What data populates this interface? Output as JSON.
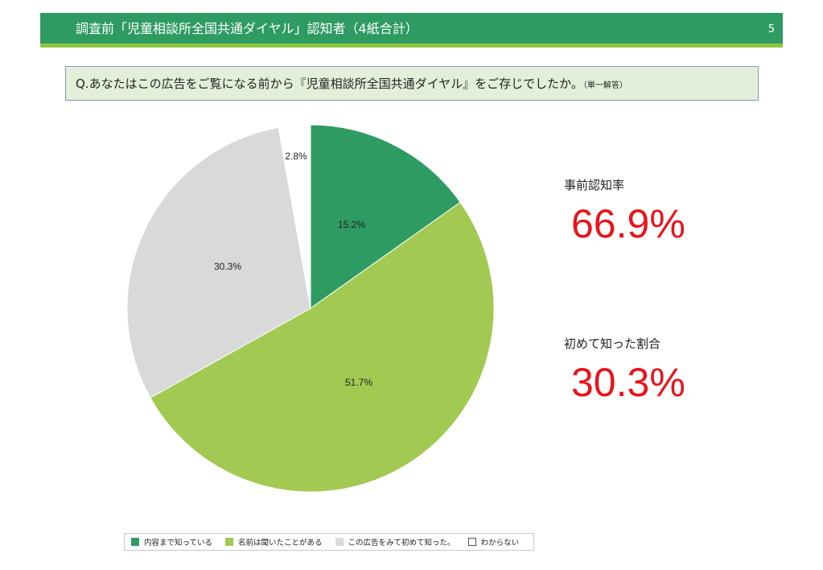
{
  "header": {
    "title": "調査前「児童相談所全国共通ダイヤル」認知者（4紙合計）",
    "page_number": "5"
  },
  "question": {
    "text": "Q.あなたはこの広告をご覧になる前から『児童相談所全国共通ダイヤル』をご存じでしたか。",
    "note": "（単一解答）"
  },
  "kpis": [
    {
      "label": "事前認知率",
      "value": "66.9%"
    },
    {
      "label": "初めて知った割合",
      "value": "30.3%"
    }
  ],
  "colors": {
    "header": "#2e9b63",
    "header_accent": "#8dc63f",
    "kpi_value": "#e8141b"
  },
  "chart_data": {
    "type": "pie",
    "start": "12 o'clock",
    "direction": "clockwise",
    "slices": [
      {
        "label": "内容まで知っている",
        "value": 15.2,
        "display": "15.2%",
        "color": "#2e9b63"
      },
      {
        "label": "名前は聞いたことがある",
        "value": 51.7,
        "display": "51.7%",
        "color": "#a2c951"
      },
      {
        "label": "この広告をみて初めて知った。",
        "value": 30.3,
        "display": "30.3%",
        "color": "#d9d9d9"
      },
      {
        "label": "わからない",
        "value": 2.8,
        "display": "2.8%",
        "color": "#ffffff"
      }
    ],
    "legend_position": "bottom"
  }
}
